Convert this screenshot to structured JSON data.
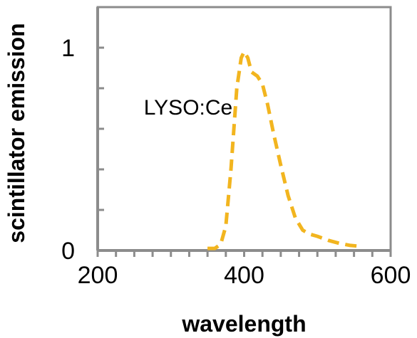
{
  "chart_data": {
    "type": "line",
    "xlabel": "wavelength",
    "ylabel": "scintillator emission",
    "xlim": [
      200,
      600
    ],
    "ylim": [
      0,
      1.2
    ],
    "x_ticks": [
      {
        "value": 200,
        "label": "200"
      },
      {
        "value": 400,
        "label": "400"
      },
      {
        "value": 600,
        "label": "600"
      }
    ],
    "y_ticks": [
      {
        "value": 0,
        "label": "0"
      },
      {
        "value": 1,
        "label": "1"
      }
    ],
    "x_minor_step": 25,
    "y_minor_step": 0.2,
    "grid": false,
    "annotation": {
      "text": "LYSO:Ce",
      "x": 263,
      "y": 0.67
    },
    "series": [
      {
        "color": "#F2B51F",
        "dash": true,
        "x": [
          350,
          360,
          368,
          375,
          382,
          390,
          396,
          400,
          405,
          410,
          418,
          425,
          432,
          440,
          450,
          460,
          470,
          480,
          490,
          500,
          515,
          530,
          545,
          560
        ],
        "y": [
          0.01,
          0.01,
          0.03,
          0.12,
          0.4,
          0.8,
          0.95,
          0.98,
          0.95,
          0.88,
          0.86,
          0.82,
          0.72,
          0.58,
          0.42,
          0.27,
          0.16,
          0.1,
          0.08,
          0.07,
          0.05,
          0.035,
          0.025,
          0.02
        ]
      }
    ]
  }
}
